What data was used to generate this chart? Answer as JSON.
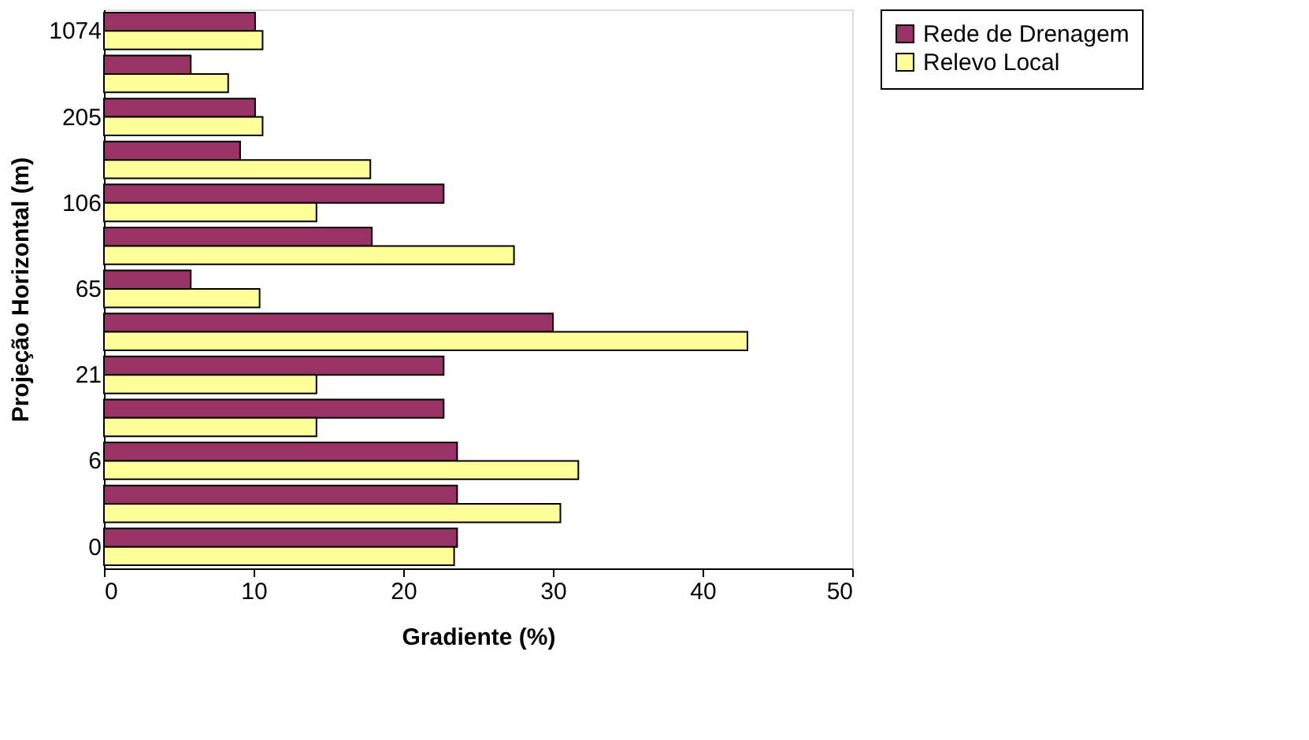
{
  "chart_data": {
    "type": "bar",
    "orientation": "horizontal",
    "xlabel": "Gradiente (%)",
    "ylabel": "Projeção Horizontal (m)",
    "categories": [
      "1074",
      null,
      "205",
      null,
      "106",
      null,
      "65",
      null,
      "21",
      null,
      "6",
      null,
      "0"
    ],
    "series": [
      {
        "name": "Rede de Drenagem",
        "color": "#993366",
        "values": [
          10.1,
          5.8,
          10.1,
          9.1,
          22.7,
          17.9,
          5.8,
          30.0,
          22.7,
          22.7,
          23.6,
          23.6,
          23.6
        ]
      },
      {
        "name": "Relevo Local",
        "color": "#ffff99",
        "values": [
          10.6,
          8.3,
          10.6,
          17.8,
          14.2,
          27.4,
          10.4,
          43.0,
          14.2,
          14.2,
          31.7,
          30.5,
          23.4
        ]
      }
    ],
    "xlim": [
      0,
      50
    ],
    "xticks": [
      0,
      10,
      20,
      30,
      40,
      50
    ],
    "grid": false,
    "legend": "right"
  }
}
